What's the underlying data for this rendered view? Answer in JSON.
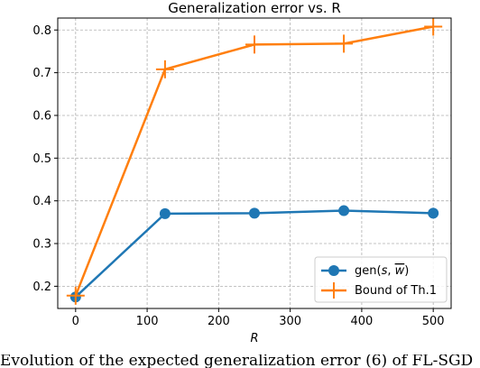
{
  "chart_data": {
    "type": "line",
    "title": "Generalization error vs. R",
    "xlabel": "R",
    "ylabel": "",
    "xlim": [
      -25,
      525
    ],
    "ylim": [
      0.148,
      0.828
    ],
    "xticks": [
      0,
      100,
      200,
      300,
      400,
      500
    ],
    "xtick_labels": [
      "0",
      "100",
      "200",
      "300",
      "400",
      "500"
    ],
    "yticks": [
      0.2,
      0.3,
      0.4,
      0.5,
      0.6,
      0.7,
      0.8
    ],
    "ytick_labels": [
      "0.2",
      "0.3",
      "0.4",
      "0.5",
      "0.6",
      "0.7",
      "0.8"
    ],
    "grid": true,
    "legend_position": "lower-right",
    "series": [
      {
        "name": "gen(s, w̄)",
        "color": "#1f77b4",
        "marker": "circle",
        "x": [
          0,
          125,
          250,
          375,
          500
        ],
        "y": [
          0.175,
          0.37,
          0.371,
          0.377,
          0.371
        ]
      },
      {
        "name": "Bound of Th.1",
        "color": "#ff7f0e",
        "marker": "plus",
        "x": [
          0,
          125,
          250,
          375,
          500
        ],
        "y": [
          0.178,
          0.708,
          0.766,
          0.768,
          0.808
        ]
      }
    ],
    "legend": {
      "entry_1": {
        "prefix": "gen(",
        "var1": "s",
        "sep": ", ",
        "var2": "w",
        "suffix": ")"
      },
      "entry_2": "Bound of Th.1"
    }
  },
  "caption": "Evolution of the expected generalization error (6) of FL-SGD"
}
